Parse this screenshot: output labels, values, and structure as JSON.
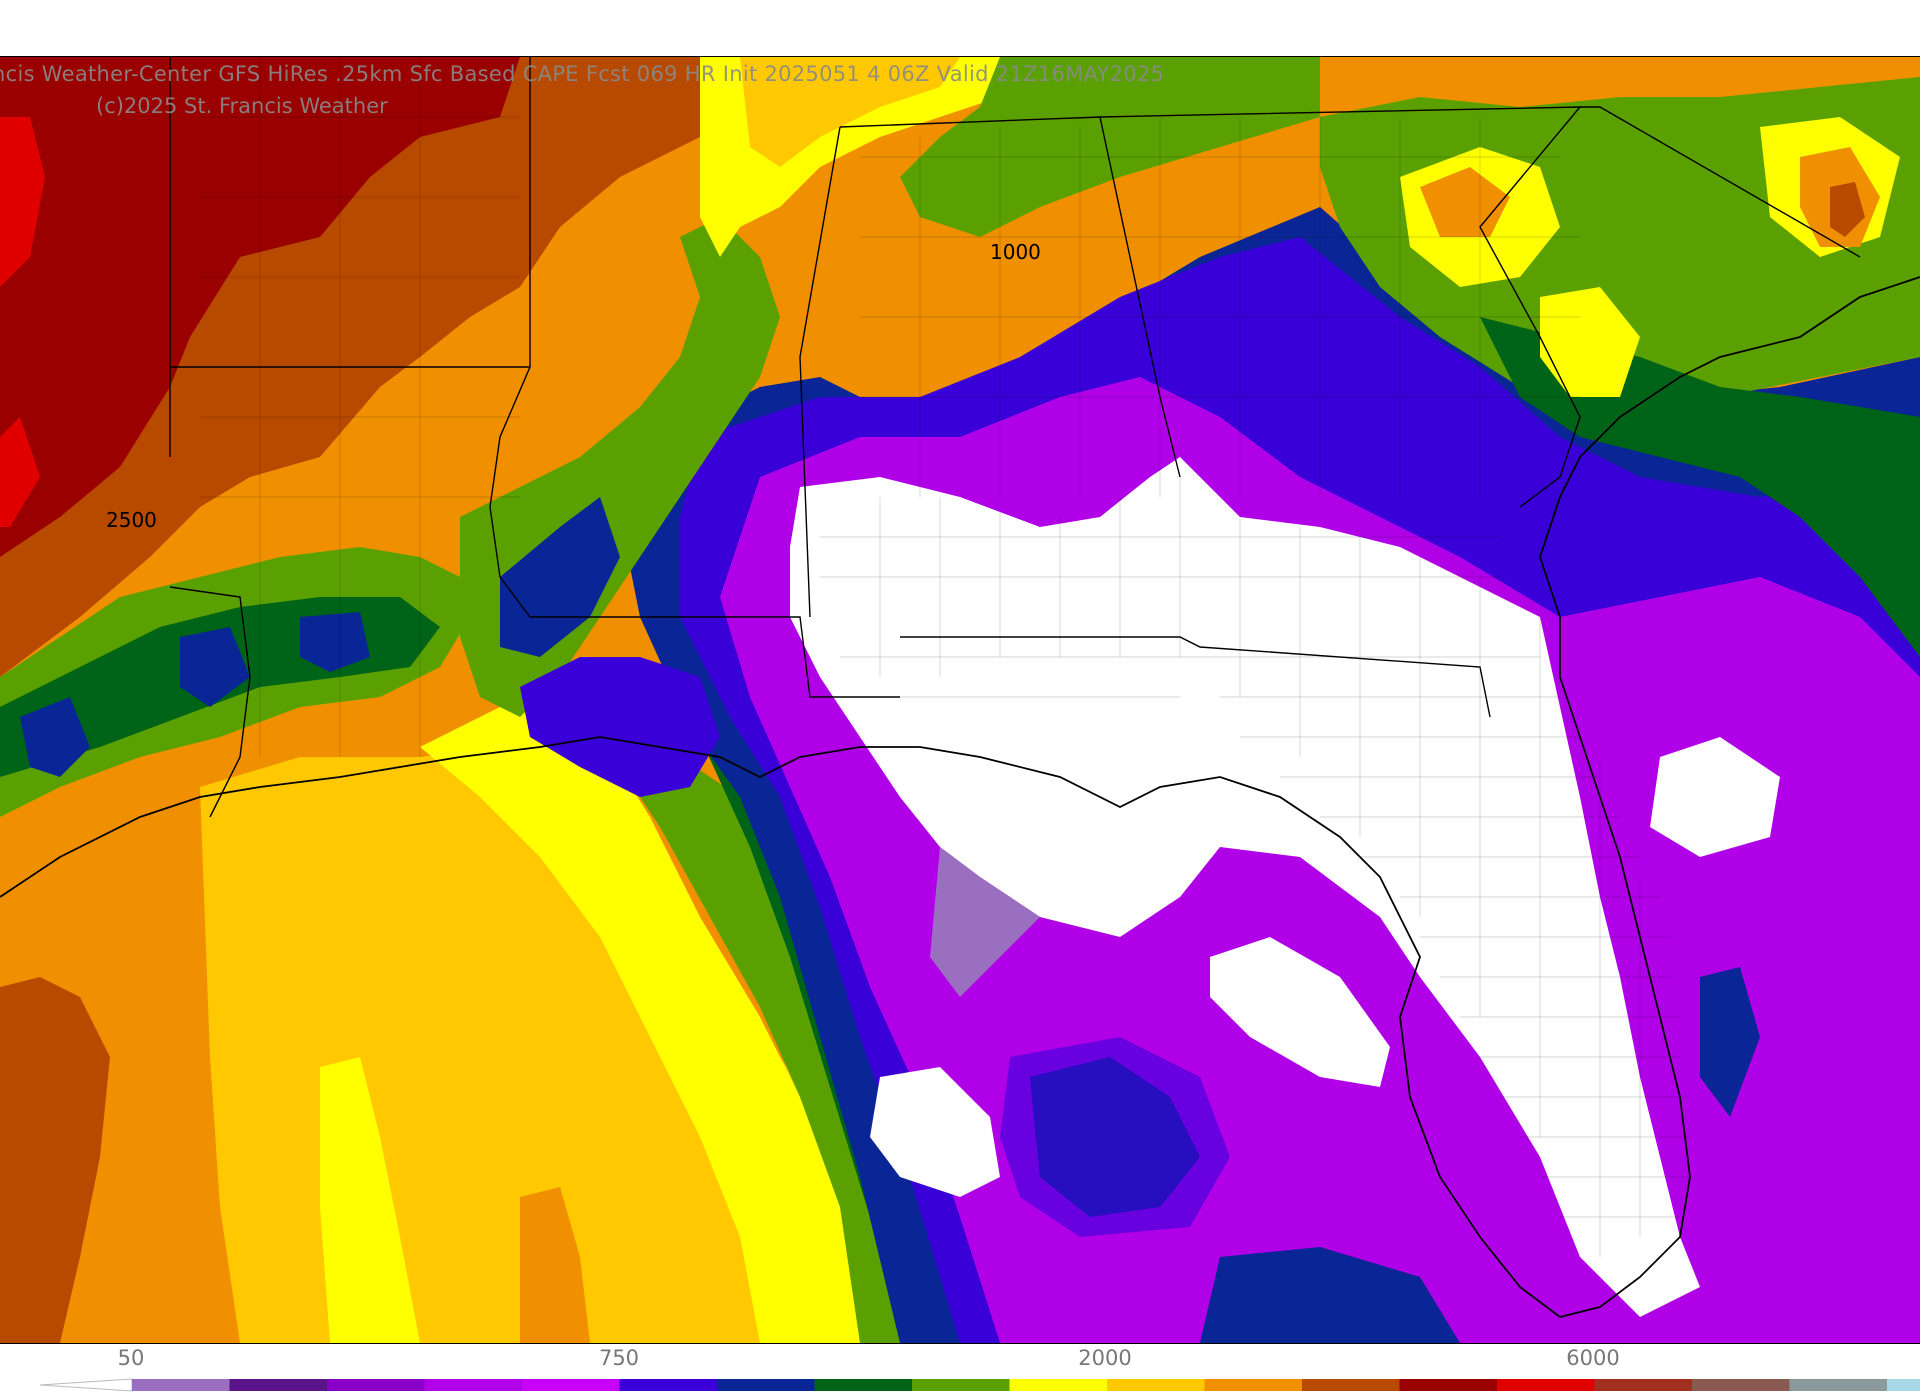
{
  "header": {
    "title": "ncis Weather-Center GFS HiRes .25km Sfc Based CAPE  Fcst 069 HR Init 2025051 4 06Z  Valid 21Z16MAY2025",
    "copyright": "(c)2025 St. Francis Weather"
  },
  "map": {
    "contour_labels": [
      "2500",
      "1000"
    ],
    "icons": [
      "state-boundary-lines",
      "county-boundary-lines",
      "coastline"
    ]
  },
  "colorbar": {
    "tick_labels": [
      "50",
      "750",
      "2000",
      "6000"
    ],
    "colors": [
      "#9b6fc0",
      "#5a148a",
      "#8b00c8",
      "#b000e8",
      "#c800f8",
      "#3a00d8",
      "#0a2596",
      "#006418",
      "#5aa000",
      "#ffff00",
      "#ffc800",
      "#f09000",
      "#b84a00",
      "#9a0000",
      "#e00000",
      "#a03020",
      "#8a5a50",
      "#8a9a9a",
      "#a8d8e8"
    ]
  },
  "legend_colors": {
    "white": "#ffffff",
    "lavender": "#9b6fc0",
    "magenta": "#c000f0",
    "violet": "#8b00c8",
    "blue": "#3a00d8",
    "navy": "#0a2596",
    "dark-green": "#006418",
    "green": "#5aa000",
    "yellow": "#ffff00",
    "gold": "#ffc800",
    "orange": "#f09000",
    "rust": "#b84a00",
    "dark-red": "#9a0000",
    "red": "#e00000"
  }
}
